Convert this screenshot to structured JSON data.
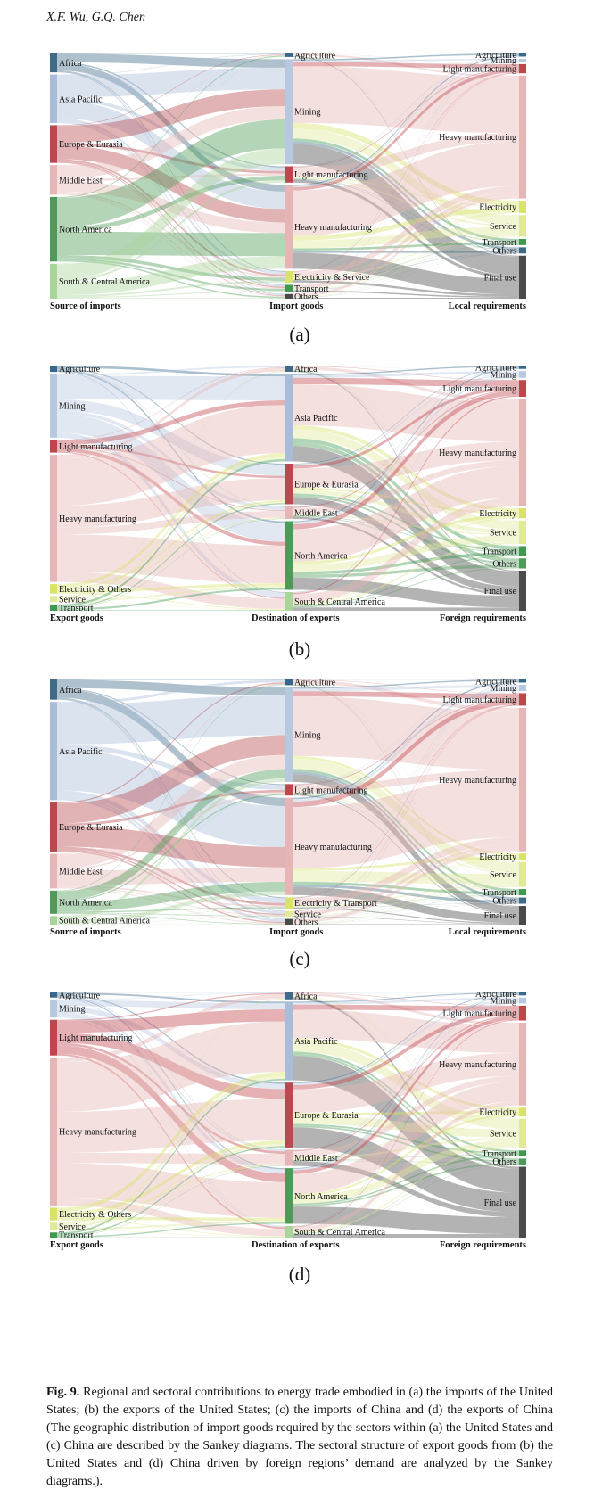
{
  "header": {
    "authors": "X.F. Wu, G.Q. Chen"
  },
  "colors": {
    "africa": "#3f6b86",
    "asia": "#a9bcd8",
    "europe": "#b8494f",
    "middle_east": "#e6b6b6",
    "north_america": "#4f9a58",
    "south_america": "#a9d49a",
    "light_mfg": "#c0464d",
    "heavy_mfg": "#e6b6b6",
    "electricity": "#d9e26a",
    "service": "#e2ea9a",
    "transport": "#3f9a50",
    "final_use": "#4a4a4a",
    "agriculture": "#36688d",
    "mining": "#b8c8df"
  },
  "panels": [
    {
      "id": "a",
      "panel_label": "(a)",
      "axis_labels": [
        "Source of imports",
        "Import goods",
        "Local requirements"
      ],
      "columns": [
        [
          {
            "label": "Africa",
            "value": 7,
            "color": "africa"
          },
          {
            "label": "Asia Pacific",
            "value": 18,
            "color": "asia"
          },
          {
            "label": "Europe & Eurasia",
            "value": 14,
            "color": "europe"
          },
          {
            "label": "Middle East",
            "value": 11,
            "color": "middle_east"
          },
          {
            "label": "North America",
            "value": 24,
            "color": "north_america"
          },
          {
            "label": "South & Central America",
            "value": 13,
            "color": "south_america"
          }
        ],
        [
          {
            "label": "Agriculture",
            "value": 1.5,
            "color": "agriculture"
          },
          {
            "label": "Mining",
            "value": 45,
            "color": "mining"
          },
          {
            "label": "Light manufacturing",
            "value": 7,
            "color": "light_mfg"
          },
          {
            "label": "Heavy manufacturing",
            "value": 36,
            "color": "heavy_mfg"
          },
          {
            "label": "Electricity & Service",
            "value": 5,
            "color": "electricity"
          },
          {
            "label": "Transport",
            "value": 3,
            "color": "transport"
          },
          {
            "label": "Others",
            "value": 2,
            "color": "final_use"
          }
        ],
        [
          {
            "label": "Agriculture",
            "value": 1,
            "color": "agriculture"
          },
          {
            "label": "Mining",
            "value": 1,
            "color": "mining"
          },
          {
            "label": "Light manufacturing",
            "value": 3,
            "color": "light_mfg"
          },
          {
            "label": "Heavy manufacturing",
            "value": 40,
            "color": "heavy_mfg"
          },
          {
            "label": "Electricity",
            "value": 4,
            "color": "electricity"
          },
          {
            "label": "Service",
            "value": 7,
            "color": "service"
          },
          {
            "label": "Transport",
            "value": 2,
            "color": "transport"
          },
          {
            "label": "Others",
            "value": 2,
            "color": "africa"
          },
          {
            "label": "Final use",
            "value": 14,
            "color": "final_use"
          }
        ]
      ]
    },
    {
      "id": "b",
      "panel_label": "(b)",
      "axis_labels": [
        "Export goods",
        "Destination of exports",
        "Foreign requirements"
      ],
      "columns": [
        [
          {
            "label": "Agriculture",
            "value": 2,
            "color": "agriculture"
          },
          {
            "label": "Mining",
            "value": 20,
            "color": "mining"
          },
          {
            "label": "Light manufacturing",
            "value": 4,
            "color": "light_mfg"
          },
          {
            "label": "Heavy manufacturing",
            "value": 40,
            "color": "heavy_mfg"
          },
          {
            "label": "Electricity & Others",
            "value": 3,
            "color": "electricity"
          },
          {
            "label": "Service",
            "value": 2,
            "color": "service"
          },
          {
            "label": "Transport",
            "value": 2,
            "color": "transport"
          }
        ],
        [
          {
            "label": "Africa",
            "value": 2,
            "color": "africa"
          },
          {
            "label": "Asia Pacific",
            "value": 28,
            "color": "asia"
          },
          {
            "label": "Europe & Eurasia",
            "value": 13,
            "color": "europe"
          },
          {
            "label": "Middle East",
            "value": 4,
            "color": "middle_east"
          },
          {
            "label": "North America",
            "value": 22,
            "color": "north_america"
          },
          {
            "label": "South & Central America",
            "value": 6,
            "color": "south_america"
          }
        ],
        [
          {
            "label": "Agriculture",
            "value": 1,
            "color": "agriculture"
          },
          {
            "label": "Mining",
            "value": 2,
            "color": "mining"
          },
          {
            "label": "Light manufacturing",
            "value": 5,
            "color": "light_mfg"
          },
          {
            "label": "Heavy manufacturing",
            "value": 32,
            "color": "heavy_mfg"
          },
          {
            "label": "Electricity",
            "value": 3,
            "color": "electricity"
          },
          {
            "label": "Service",
            "value": 7,
            "color": "service"
          },
          {
            "label": "Transport",
            "value": 3,
            "color": "transport"
          },
          {
            "label": "Others",
            "value": 3,
            "color": "north_america"
          },
          {
            "label": "Final use",
            "value": 12,
            "color": "final_use"
          }
        ]
      ]
    },
    {
      "id": "c",
      "panel_label": "(c)",
      "axis_labels": [
        "Source of imports",
        "Import goods",
        "Local requirements"
      ],
      "columns": [
        [
          {
            "label": "Africa",
            "value": 7,
            "color": "africa"
          },
          {
            "label": "Asia Pacific",
            "value": 34,
            "color": "asia"
          },
          {
            "label": "Europe & Eurasia",
            "value": 17,
            "color": "europe"
          },
          {
            "label": "Middle East",
            "value": 12,
            "color": "middle_east"
          },
          {
            "label": "North America",
            "value": 8,
            "color": "north_america"
          },
          {
            "label": "South & Central America",
            "value": 3,
            "color": "south_america"
          }
        ],
        [
          {
            "label": "Agriculture",
            "value": 2,
            "color": "agriculture"
          },
          {
            "label": "Mining",
            "value": 33,
            "color": "mining"
          },
          {
            "label": "Light manufacturing",
            "value": 4,
            "color": "light_mfg"
          },
          {
            "label": "Heavy manufacturing",
            "value": 34,
            "color": "heavy_mfg"
          },
          {
            "label": "Electricity & Transport",
            "value": 4,
            "color": "electricity"
          },
          {
            "label": "Service",
            "value": 2,
            "color": "service"
          },
          {
            "label": "Others",
            "value": 2,
            "color": "final_use"
          }
        ],
        [
          {
            "label": "Agriculture",
            "value": 1,
            "color": "agriculture"
          },
          {
            "label": "Mining",
            "value": 2,
            "color": "mining"
          },
          {
            "label": "Light manufacturing",
            "value": 4,
            "color": "light_mfg"
          },
          {
            "label": "Heavy manufacturing",
            "value": 46,
            "color": "heavy_mfg"
          },
          {
            "label": "Electricity",
            "value": 2,
            "color": "electricity"
          },
          {
            "label": "Service",
            "value": 8,
            "color": "service"
          },
          {
            "label": "Transport",
            "value": 2,
            "color": "transport"
          },
          {
            "label": "Others",
            "value": 2,
            "color": "africa"
          },
          {
            "label": "Final use",
            "value": 6,
            "color": "final_use"
          }
        ]
      ]
    },
    {
      "id": "d",
      "panel_label": "(d)",
      "axis_labels": [
        "Export goods",
        "Destination of exports",
        "Foreign requirements"
      ],
      "columns": [
        [
          {
            "label": "Agriculture",
            "value": 2,
            "color": "agriculture"
          },
          {
            "label": "Mining",
            "value": 7,
            "color": "mining"
          },
          {
            "label": "Light manufacturing",
            "value": 14,
            "color": "light_mfg"
          },
          {
            "label": "Heavy manufacturing",
            "value": 58,
            "color": "heavy_mfg"
          },
          {
            "label": "Electricity & Others",
            "value": 5,
            "color": "electricity"
          },
          {
            "label": "Service",
            "value": 3,
            "color": "service"
          },
          {
            "label": "Transport",
            "value": 2,
            "color": "transport"
          }
        ],
        [
          {
            "label": "Africa",
            "value": 3,
            "color": "africa"
          },
          {
            "label": "Asia Pacific",
            "value": 34,
            "color": "asia"
          },
          {
            "label": "Europe & Eurasia",
            "value": 28,
            "color": "europe"
          },
          {
            "label": "Middle East",
            "value": 7,
            "color": "middle_east"
          },
          {
            "label": "North America",
            "value": 24,
            "color": "north_america"
          },
          {
            "label": "South & Central America",
            "value": 5,
            "color": "south_america"
          }
        ],
        [
          {
            "label": "Agriculture",
            "value": 1,
            "color": "agriculture"
          },
          {
            "label": "Mining",
            "value": 2,
            "color": "mining"
          },
          {
            "label": "Light manufacturing",
            "value": 5,
            "color": "light_mfg"
          },
          {
            "label": "Heavy manufacturing",
            "value": 28,
            "color": "heavy_mfg"
          },
          {
            "label": "Electricity",
            "value": 3,
            "color": "electricity"
          },
          {
            "label": "Service",
            "value": 10,
            "color": "service"
          },
          {
            "label": "Transport",
            "value": 2,
            "color": "transport"
          },
          {
            "label": "Others",
            "value": 2,
            "color": "north_america"
          },
          {
            "label": "Final use",
            "value": 24,
            "color": "final_use"
          }
        ]
      ]
    }
  ],
  "caption": {
    "label": "Fig. 9.",
    "text": " Regional and sectoral contributions to energy trade embodied in (a) the imports of the United States; (b) the exports of the United States; (c) the imports of China and (d) the exports of China (The geographic distribution of import goods required by the sectors within (a) the United States and (c) China are described by the Sankey diagrams. The sectoral structure of export goods from (b) the United States and (d) China driven by foreign regions’ demand are analyzed by the Sankey diagrams.)."
  }
}
